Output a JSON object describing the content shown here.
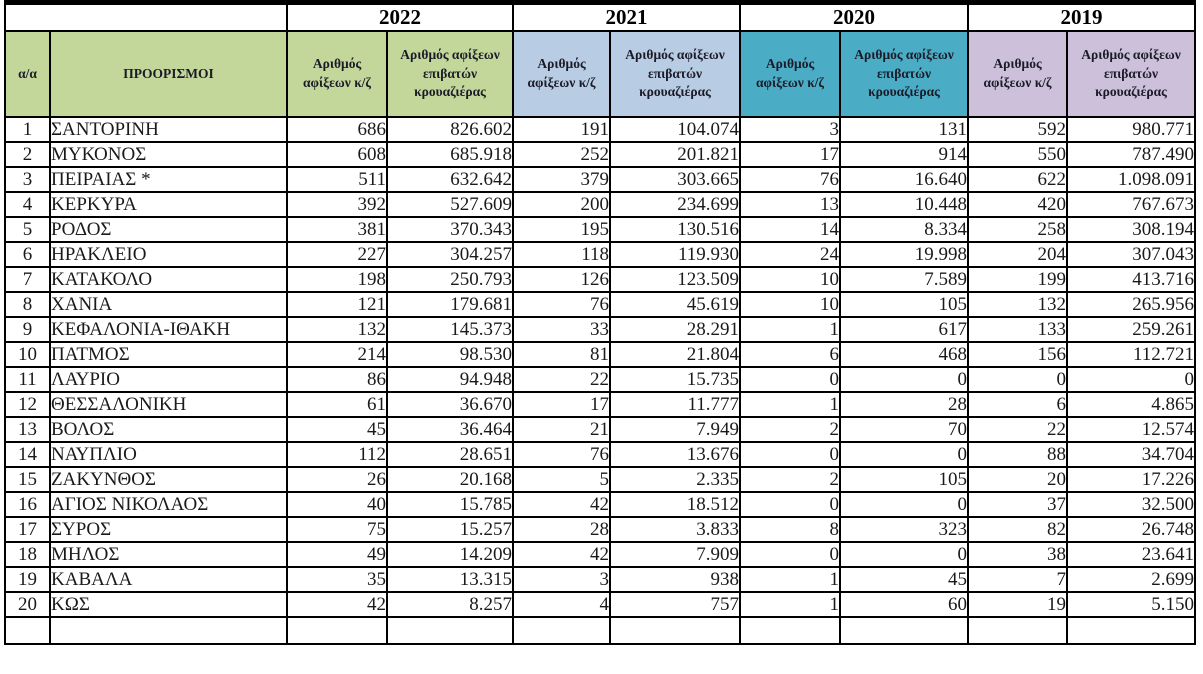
{
  "table": {
    "corner": {
      "index_label": "α/α",
      "destinations_label": "ΠΡΟΟΡΙΣΜΟΙ"
    },
    "subheaders": {
      "ships": "Αριθμός αφίξεων κ/ζ",
      "passengers": "Αριθμός αφίξεων επιβατών κρουαζιέρας"
    },
    "year_groups": [
      {
        "year": "2022",
        "color": "#c4d79b"
      },
      {
        "year": "2021",
        "color": "#b8cce4"
      },
      {
        "year": "2020",
        "color": "#4bacc6"
      },
      {
        "year": "2019",
        "color": "#ccc0da"
      }
    ],
    "corner_color": "#c4d79b",
    "border_color": "#000000",
    "header_text_color": "#1b1b28",
    "rows": [
      {
        "index": "1",
        "destination": "ΣΑΝΤΟΡΙΝΗ",
        "values": [
          "686",
          "826.602",
          "191",
          "104.074",
          "3",
          "131",
          "592",
          "980.771"
        ]
      },
      {
        "index": "2",
        "destination": "ΜΥΚΟΝΟΣ",
        "values": [
          "608",
          "685.918",
          "252",
          "201.821",
          "17",
          "914",
          "550",
          "787.490"
        ]
      },
      {
        "index": "3",
        "destination": "ΠΕΙΡΑΙΑΣ *",
        "values": [
          "511",
          "632.642",
          "379",
          "303.665",
          "76",
          "16.640",
          "622",
          "1.098.091"
        ]
      },
      {
        "index": "4",
        "destination": "ΚΕΡΚΥΡΑ",
        "values": [
          "392",
          "527.609",
          "200",
          "234.699",
          "13",
          "10.448",
          "420",
          "767.673"
        ]
      },
      {
        "index": "5",
        "destination": "ΡΟΔΟΣ",
        "values": [
          "381",
          "370.343",
          "195",
          "130.516",
          "14",
          "8.334",
          "258",
          "308.194"
        ]
      },
      {
        "index": "6",
        "destination": "ΗΡΑΚΛΕΙΟ",
        "values": [
          "227",
          "304.257",
          "118",
          "119.930",
          "24",
          "19.998",
          "204",
          "307.043"
        ]
      },
      {
        "index": "7",
        "destination": "ΚΑΤΑΚΟΛΟ",
        "values": [
          "198",
          "250.793",
          "126",
          "123.509",
          "10",
          "7.589",
          "199",
          "413.716"
        ]
      },
      {
        "index": "8",
        "destination": "ΧΑΝΙΑ",
        "values": [
          "121",
          "179.681",
          "76",
          "45.619",
          "10",
          "105",
          "132",
          "265.956"
        ]
      },
      {
        "index": "9",
        "destination": "ΚΕΦΑΛΟΝΙΑ-ΙΘΑΚΗ",
        "values": [
          "132",
          "145.373",
          "33",
          "28.291",
          "1",
          "617",
          "133",
          "259.261"
        ]
      },
      {
        "index": "10",
        "destination": "ΠΑΤΜΟΣ",
        "values": [
          "214",
          "98.530",
          "81",
          "21.804",
          "6",
          "468",
          "156",
          "112.721"
        ]
      },
      {
        "index": "11",
        "destination": "ΛΑΥΡΙΟ",
        "values": [
          "86",
          "94.948",
          "22",
          "15.735",
          "0",
          "0",
          "0",
          "0"
        ]
      },
      {
        "index": "12",
        "destination": "ΘΕΣΣΑΛΟΝΙΚΗ",
        "values": [
          "61",
          "36.670",
          "17",
          "11.777",
          "1",
          "28",
          "6",
          "4.865"
        ]
      },
      {
        "index": "13",
        "destination": "ΒΟΛΟΣ",
        "values": [
          "45",
          "36.464",
          "21",
          "7.949",
          "2",
          "70",
          "22",
          "12.574"
        ]
      },
      {
        "index": "14",
        "destination": "ΝΑΥΠΛΙΟ",
        "values": [
          "112",
          "28.651",
          "76",
          "13.676",
          "0",
          "0",
          "88",
          "34.704"
        ]
      },
      {
        "index": "15",
        "destination": "ΖΑΚΥΝΘΟΣ",
        "values": [
          "26",
          "20.168",
          "5",
          "2.335",
          "2",
          "105",
          "20",
          "17.226"
        ]
      },
      {
        "index": "16",
        "destination": "ΑΓΙΟΣ ΝΙΚΟΛΑΟΣ",
        "values": [
          "40",
          "15.785",
          "42",
          "18.512",
          "0",
          "0",
          "37",
          "32.500"
        ]
      },
      {
        "index": "17",
        "destination": "ΣΥΡΟΣ",
        "values": [
          "75",
          "15.257",
          "28",
          "3.833",
          "8",
          "323",
          "82",
          "26.748"
        ]
      },
      {
        "index": "18",
        "destination": "ΜΗΛΟΣ",
        "values": [
          "49",
          "14.209",
          "42",
          "7.909",
          "0",
          "0",
          "38",
          "23.641"
        ]
      },
      {
        "index": "19",
        "destination": "ΚΑΒΑΛΑ",
        "values": [
          "35",
          "13.315",
          "3",
          "938",
          "1",
          "45",
          "7",
          "2.699"
        ]
      },
      {
        "index": "20",
        "destination": "ΚΩΣ",
        "values": [
          "42",
          "8.257",
          "4",
          "757",
          "1",
          "60",
          "19",
          "5.150"
        ]
      }
    ],
    "value_column_names": [
      "ships-2022",
      "passengers-2022",
      "ships-2021",
      "passengers-2021",
      "ships-2020",
      "passengers-2020",
      "ships-2019",
      "passengers-2019"
    ]
  }
}
